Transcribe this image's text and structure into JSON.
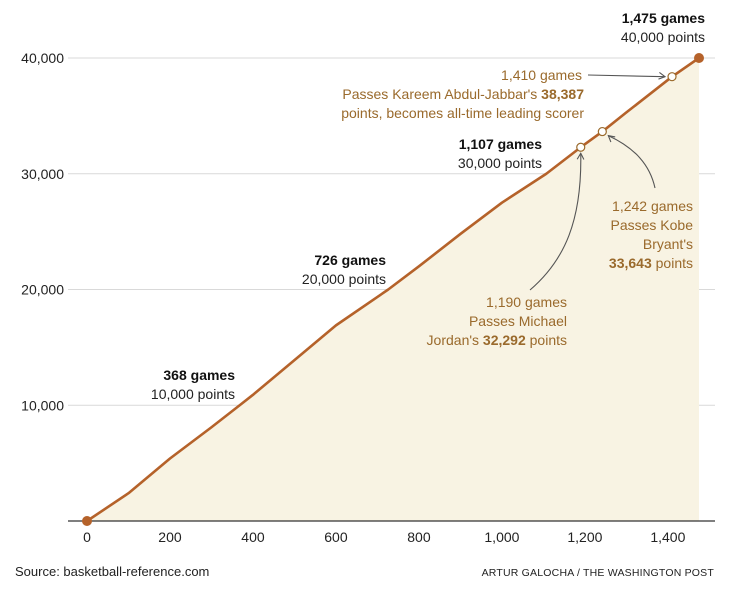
{
  "chart_data": {
    "type": "area",
    "x": [
      0,
      100,
      200,
      300,
      368,
      400,
      500,
      600,
      726,
      800,
      900,
      1000,
      1107,
      1190,
      1242,
      1300,
      1410,
      1475
    ],
    "y": [
      0,
      2400,
      5400,
      8100,
      10000,
      10900,
      13900,
      16900,
      20000,
      22000,
      24800,
      27500,
      30000,
      32292,
      33643,
      35300,
      38387,
      40000
    ],
    "xlim": [
      0,
      1500
    ],
    "ylim": [
      0,
      42000
    ],
    "x_ticks": [
      0,
      200,
      400,
      600,
      800,
      1000,
      1200,
      1400
    ],
    "x_tick_labels": [
      "0",
      "200",
      "400",
      "600",
      "800",
      "1,000",
      "1,200",
      "1,400"
    ],
    "y_ticks": [
      10000,
      20000,
      30000,
      40000
    ],
    "y_tick_labels": [
      "10,000",
      "20,000",
      "30,000",
      "40,000"
    ],
    "grid": true,
    "colors": {
      "line": "#b5622a",
      "fill": "#f8f3e3",
      "milestone": "#9a6a2c"
    },
    "annotations": [
      {
        "x": 368,
        "y": 10000,
        "games": "368 games",
        "points": "10,000 points"
      },
      {
        "x": 726,
        "y": 20000,
        "games": "726 games",
        "points": "20,000 points"
      },
      {
        "x": 1107,
        "y": 30000,
        "games": "1,107 games",
        "points": "30,000 points"
      },
      {
        "x": 1475,
        "y": 40000,
        "games": "1,475 games",
        "points": "40,000 points"
      }
    ],
    "milestones": [
      {
        "x": 1190,
        "y": 32292,
        "lines": [
          "1,190 games",
          "Passes Michael"
        ],
        "pre": "Jordan's ",
        "value": "32,292",
        "post": " points"
      },
      {
        "x": 1242,
        "y": 33643,
        "lines": [
          "1,242 games",
          "Passes Kobe",
          "Bryant's"
        ],
        "pre": "",
        "value": "33,643",
        "post": " points"
      },
      {
        "x": 1410,
        "y": 38387,
        "lines": [
          "1,410 games"
        ],
        "pre": "Passes Kareem Abdul-Jabbar's ",
        "value": "38,387",
        "post": "",
        "extra": "points, becomes all-time leading scorer"
      }
    ]
  },
  "footer": {
    "source": "Source: basketball-reference.com",
    "credit": "ARTUR GALOCHA / THE WASHINGTON POST"
  }
}
